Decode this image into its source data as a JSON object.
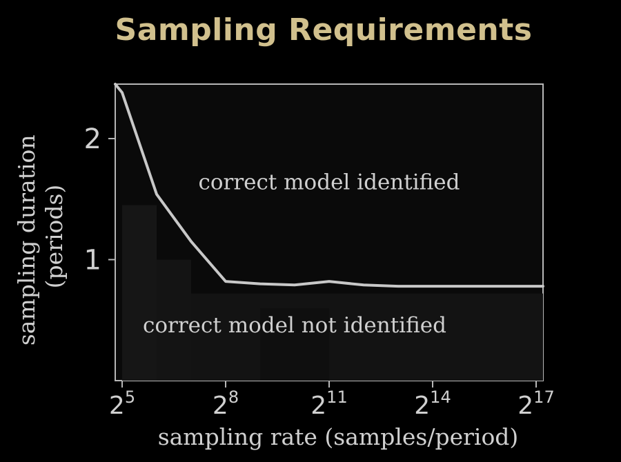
{
  "title": "Sampling Requirements",
  "chart_data": {
    "type": "line",
    "title": "Sampling Requirements",
    "xlabel": "sampling rate (samples/period)",
    "ylabel_line1": "sampling duration",
    "ylabel_line2": "(periods)",
    "x_scale": "log2",
    "xlim_exponent": [
      4.8,
      17.2
    ],
    "ylim": [
      0.0,
      2.45
    ],
    "x_tick_labels": [
      {
        "base": "2",
        "exp": "5",
        "e": 5
      },
      {
        "base": "2",
        "exp": "8",
        "e": 8
      },
      {
        "base": "2",
        "exp": "11",
        "e": 11
      },
      {
        "base": "2",
        "exp": "14",
        "e": 14
      },
      {
        "base": "2",
        "exp": "17",
        "e": 17
      }
    ],
    "y_ticks": [
      {
        "label": "1",
        "value": 1
      },
      {
        "label": "2",
        "value": 2
      }
    ],
    "series": [
      {
        "color": "#c8c8c8",
        "x_exponent": [
          4.8,
          5.0,
          6.0,
          7.0,
          8.0,
          9.0,
          10.0,
          11.0,
          12.0,
          13.0,
          14.0,
          15.0,
          16.0,
          17.0,
          17.2
        ],
        "y": [
          2.45,
          2.38,
          1.54,
          1.15,
          0.82,
          0.8,
          0.79,
          0.82,
          0.79,
          0.78,
          0.78,
          0.78,
          0.78,
          0.78,
          0.78
        ]
      }
    ],
    "annotations": [
      {
        "text": "correct model identified",
        "at_exponent": 11.0,
        "at_y": 1.58
      },
      {
        "text": "correct model not identified",
        "at_exponent": 10.0,
        "at_y": 0.4
      }
    ],
    "grid": false,
    "legend": "none"
  }
}
